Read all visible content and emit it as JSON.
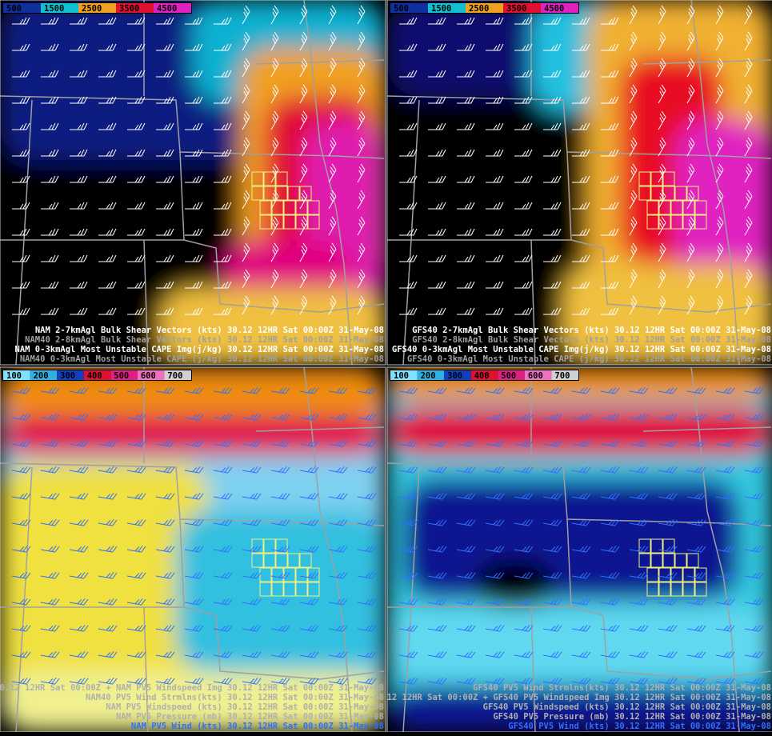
{
  "panels": [
    {
      "colorbar": [
        "500",
        "1500",
        "2500",
        "3500",
        "4500"
      ],
      "legend": [
        "NAM 2-7kmAgl Bulk Shear Vectors (kts)  30.12  12HR Sat 00:00Z 31-May-08",
        "NAM40 2-8kmAgl Bulk Shear Vectors (kts)  30.12  12HR Sat 00:00Z 31-May-08",
        "NAM 0-3kmAgl Most Unstable CAPE Img(j/kg)  30.12  12HR Sat 00:00Z 31-May-08",
        "NAM40 0-3kmAgl Most Unstable CAPE (j/kg)  30.12  12HR Sat 00:00Z 31-May-08"
      ]
    },
    {
      "colorbar": [
        "500",
        "1500",
        "2500",
        "3500",
        "4500"
      ],
      "legend": [
        "GFS40 2-7kmAgl Bulk Shear Vectors (kts)  30.12  12HR Sat 00:00Z 31-May-08",
        "GFS40 2-8kmAgl Bulk Shear Vectors (kts)  30.12  12HR Sat 00:00Z 31-May-08",
        "GFS40 0-3kmAgl Most Unstable CAPE Img(j/kg)  30.12  12HR Sat 00:00Z 31-May-08",
        "GFS40 0-3kmAgl Most Unstable CAPE (j/kg)  30.12  12HR Sat 00:00Z 31-May-08"
      ]
    },
    {
      "colorbar": [
        "100",
        "200",
        "300",
        "400",
        "500",
        "600",
        "700"
      ],
      "legend": [
        "0.12  12HR Sat 00:00Z + NAM PV5 Windspeed Img  30.12  12HR Sat 00:00Z 31-May-08",
        "NAM40 PV5 Wind Strmlns(kts)  30.12  12HR Sat 00:00Z 31-May-08",
        "NAM PV5 Windspeed (kts)  30.12  12HR Sat 00:00Z 31-May-08",
        "NAM PV5 Pressure (mb)  30.12  12HR Sat 00:00Z 31-May-08",
        "NAM PV5 Wind (kts)  30.12  12HR Sat 00:00Z 31-May-08"
      ]
    },
    {
      "colorbar": [
        "100",
        "200",
        "300",
        "400",
        "500",
        "600",
        "700"
      ],
      "legend": [
        "GFS40 PV5 Wind Strmlns(kts)  30.12  12HR Sat 00:00Z 31-May-08",
        "12  12HR Sat 00:00Z + GFS40 PV5 Windspeed Img  30.12  12HR Sat 00:00Z 31-May-08",
        "GFS40 PV5 Windspeed (kts)  30.12  12HR Sat 00:00Z 31-May-08",
        "GFS40 PV5 Pressure (mb)  30.12  12HR Sat 00:00Z 31-May-08",
        "GFS40 PV5 Wind (kts)  30.12  12HR Sat 00:00Z 31-May-08"
      ]
    }
  ]
}
